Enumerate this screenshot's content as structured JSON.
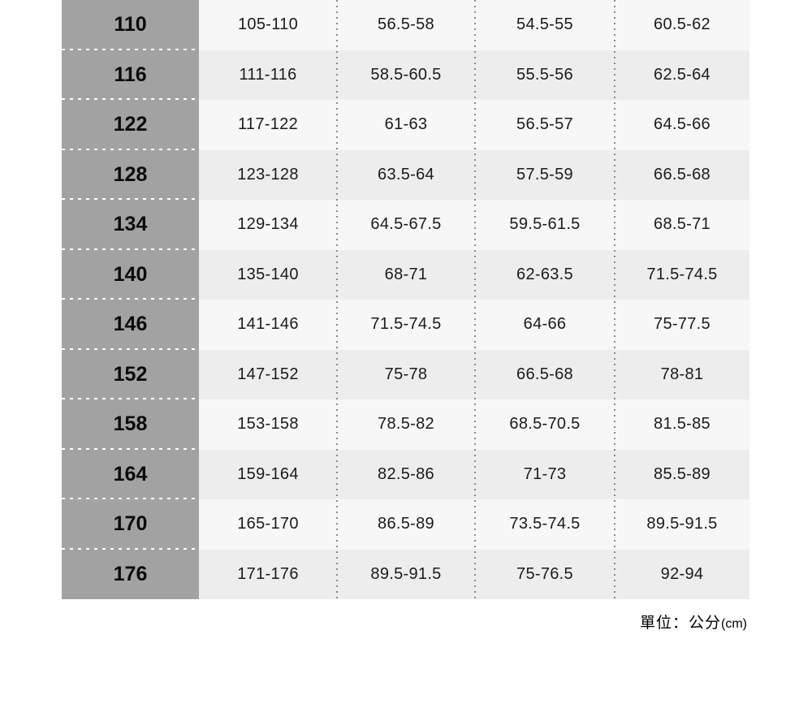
{
  "colors": {
    "size_column_bg": "#a2a2a2",
    "row_light_bg": "#f7f7f7",
    "row_dark_bg": "#ededed",
    "dotted_separator": "#8b8b8b",
    "text": "#1b1b1b"
  },
  "table": {
    "rows": [
      {
        "size": "110",
        "values": [
          "105-110",
          "56.5-58",
          "54.5-55",
          "60.5-62"
        ]
      },
      {
        "size": "116",
        "values": [
          "111-116",
          "58.5-60.5",
          "55.5-56",
          "62.5-64"
        ]
      },
      {
        "size": "122",
        "values": [
          "117-122",
          "61-63",
          "56.5-57",
          "64.5-66"
        ]
      },
      {
        "size": "128",
        "values": [
          "123-128",
          "63.5-64",
          "57.5-59",
          "66.5-68"
        ]
      },
      {
        "size": "134",
        "values": [
          "129-134",
          "64.5-67.5",
          "59.5-61.5",
          "68.5-71"
        ]
      },
      {
        "size": "140",
        "values": [
          "135-140",
          "68-71",
          "62-63.5",
          "71.5-74.5"
        ]
      },
      {
        "size": "146",
        "values": [
          "141-146",
          "71.5-74.5",
          "64-66",
          "75-77.5"
        ]
      },
      {
        "size": "152",
        "values": [
          "147-152",
          "75-78",
          "66.5-68",
          "78-81"
        ]
      },
      {
        "size": "158",
        "values": [
          "153-158",
          "78.5-82",
          "68.5-70.5",
          "81.5-85"
        ]
      },
      {
        "size": "164",
        "values": [
          "159-164",
          "82.5-86",
          "71-73",
          "85.5-89"
        ]
      },
      {
        "size": "170",
        "values": [
          "165-170",
          "86.5-89",
          "73.5-74.5",
          "89.5-91.5"
        ]
      },
      {
        "size": "176",
        "values": [
          "171-176",
          "89.5-91.5",
          "75-76.5",
          "92-94"
        ]
      }
    ]
  },
  "footer": {
    "unit_prefix": "單位：公分",
    "unit_suffix": "(cm)"
  }
}
